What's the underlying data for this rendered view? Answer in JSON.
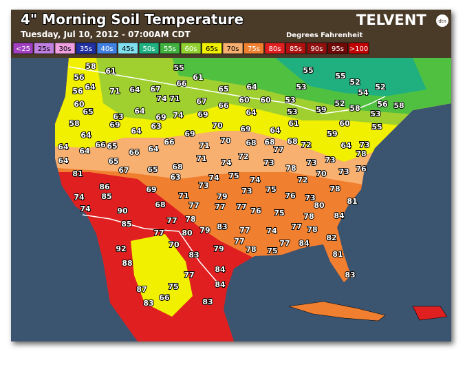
{
  "header": {
    "title": "4\" Morning Soil Temperature",
    "subtitle": "Tuesday, Jul 10, 2012 - 07:00AM CDT",
    "units_note": "Degrees Fahrenheit",
    "logo": "TELVENT",
    "logo_badge": "dtn"
  },
  "legend": [
    {
      "label": "<25",
      "color": "#a040c0"
    },
    {
      "label": "25s",
      "color": "#c080e0"
    },
    {
      "label": "30s",
      "color": "#f0a0e0"
    },
    {
      "label": "35s",
      "color": "#2030a0"
    },
    {
      "label": "40s",
      "color": "#4080e0"
    },
    {
      "label": "45s",
      "color": "#80e0f0"
    },
    {
      "label": "50s",
      "color": "#20b080"
    },
    {
      "label": "55s",
      "color": "#40b040"
    },
    {
      "label": "60s",
      "color": "#90d030"
    },
    {
      "label": "65s",
      "color": "#f0f000"
    },
    {
      "label": "70s",
      "color": "#f8b070"
    },
    {
      "label": "75s",
      "color": "#f08030"
    },
    {
      "label": "80s",
      "color": "#e02020"
    },
    {
      "label": "85s",
      "color": "#b01010"
    },
    {
      "label": "90s",
      "color": "#901010"
    },
    {
      "label": "95s",
      "color": "#700808"
    },
    {
      "label": ">100",
      "color": "#c00000"
    }
  ],
  "stations": [
    58,
    61,
    55,
    55,
    55,
    52,
    56,
    64,
    71,
    64,
    67,
    66,
    61,
    65,
    64,
    53,
    54,
    52,
    56,
    74,
    71,
    67,
    66,
    60,
    60,
    53,
    52,
    58,
    56,
    58,
    60,
    65,
    63,
    64,
    69,
    74,
    69,
    64,
    53,
    59,
    58,
    69,
    63,
    70,
    61,
    60,
    55,
    64,
    69,
    69,
    64,
    59,
    53,
    64,
    66,
    65,
    66,
    64,
    66,
    71,
    70,
    68,
    68,
    77,
    68,
    72,
    64,
    73,
    64,
    64,
    64,
    65,
    67,
    65,
    68,
    71,
    74,
    72,
    73,
    78,
    73,
    73,
    73,
    76,
    81,
    63,
    74,
    75,
    74,
    72,
    70,
    78,
    86,
    73,
    69,
    73,
    75,
    78,
    85,
    71,
    79,
    76,
    73,
    74,
    90,
    68,
    77,
    77,
    77,
    76,
    75,
    80,
    81,
    74,
    78,
    84,
    85,
    77,
    83,
    77,
    78,
    74,
    77,
    78,
    80,
    79,
    77,
    92,
    70,
    79,
    77,
    78,
    75,
    77,
    84,
    82,
    83,
    81,
    88,
    84,
    83,
    75,
    77,
    84,
    87,
    66,
    83,
    83
  ]
}
